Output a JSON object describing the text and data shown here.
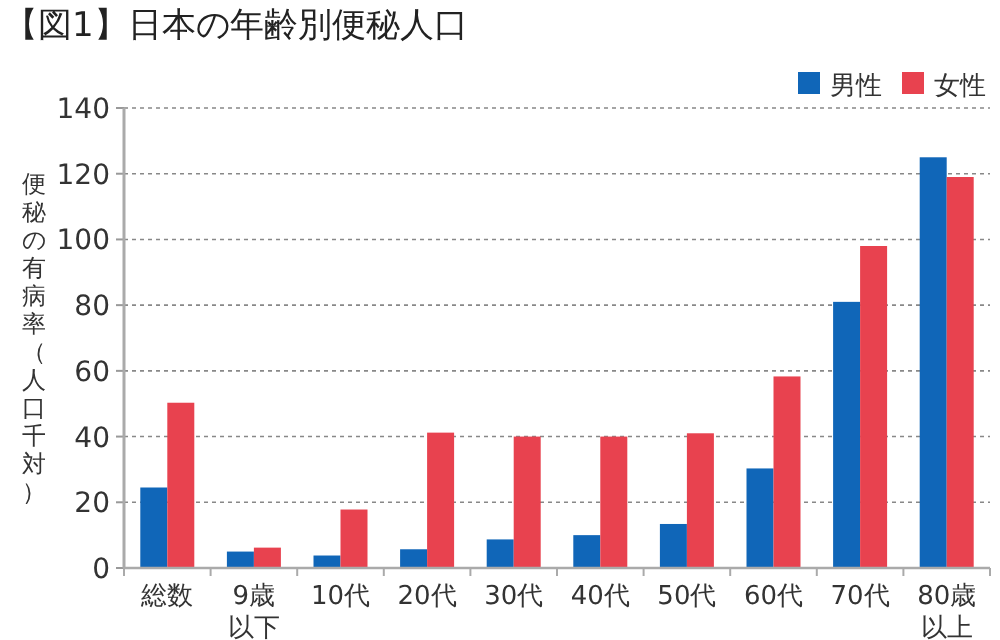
{
  "chart_data": {
    "type": "bar",
    "title": "【図1】日本の年齢別便秘人口",
    "ylabel": "便秘の有病率（人口千対）",
    "categories": [
      "総数",
      "9歳以下",
      "10代",
      "20代",
      "30代",
      "40代",
      "50代",
      "60代",
      "70代",
      "80歳以上"
    ],
    "series": [
      {
        "name": "男性",
        "color": "#1066b8",
        "values": [
          24.5,
          5,
          3.8,
          5.7,
          8.7,
          10,
          13.4,
          30.3,
          81,
          125
        ]
      },
      {
        "name": "女性",
        "color": "#e8424f",
        "values": [
          50.3,
          6.2,
          17.8,
          41.2,
          40,
          40,
          41,
          58.3,
          98,
          119
        ]
      }
    ],
    "ylim": [
      0,
      140
    ],
    "yticks": [
      0,
      20,
      40,
      60,
      80,
      100,
      120,
      140
    ],
    "grid": "y",
    "legend": "top right"
  }
}
